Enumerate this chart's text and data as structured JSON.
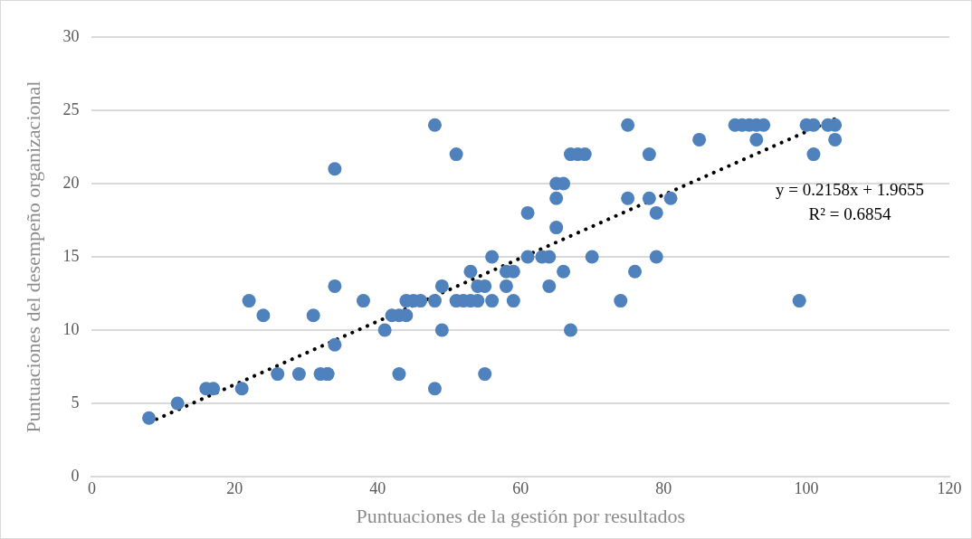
{
  "chart_data": {
    "type": "scatter",
    "xlabel": "Puntuaciones de la gestión por resultados",
    "ylabel": "Puntuaciones del desempeño organizacional",
    "xlim": [
      0,
      120
    ],
    "xticks": [
      0,
      20,
      40,
      60,
      80,
      100,
      120
    ],
    "ylim": [
      0,
      30
    ],
    "yticks": [
      0,
      5,
      10,
      15,
      20,
      25,
      30
    ],
    "grid": "y",
    "legend": false,
    "marker": "circle",
    "annotations": [
      "y = 0.2158x + 1.9655",
      "R² = 0.6854"
    ],
    "series": [
      {
        "color": "#4f81bd",
        "x": [
          8,
          12,
          16,
          17,
          21,
          22,
          24,
          26,
          29,
          31,
          32,
          33,
          33,
          34,
          34,
          34,
          38,
          41,
          42,
          43,
          43,
          44,
          44,
          45,
          46,
          48,
          48,
          48,
          49,
          49,
          51,
          51,
          52,
          53,
          53,
          54,
          54,
          55,
          55,
          56,
          56,
          58,
          58,
          59,
          59,
          61,
          61,
          63,
          64,
          64,
          65,
          65,
          65,
          66,
          66,
          67,
          67,
          68,
          69,
          70,
          74,
          75,
          75,
          76,
          78,
          78,
          79,
          79,
          81,
          85,
          90,
          91,
          92,
          93,
          94,
          93,
          99,
          100,
          101,
          101,
          103,
          104,
          104
        ],
        "values": [
          4,
          5,
          6,
          6,
          6,
          12,
          11,
          7,
          7,
          11,
          7,
          7,
          7,
          21,
          13,
          9,
          12,
          10,
          11,
          11,
          7,
          12,
          11,
          12,
          12,
          24,
          12,
          6,
          13,
          10,
          22,
          12,
          12,
          14,
          12,
          12,
          13,
          13,
          7,
          15,
          12,
          14,
          13,
          14,
          12,
          18,
          15,
          15,
          15,
          13,
          20,
          19,
          17,
          20,
          14,
          22,
          10,
          22,
          22,
          15,
          12,
          24,
          19,
          14,
          22,
          19,
          18,
          15,
          19,
          23,
          24,
          24,
          24,
          24,
          24,
          23,
          12,
          24,
          24,
          22,
          24,
          24,
          23
        ]
      },
      {
        "type": "line",
        "color": "#000000",
        "line_style": "dotted",
        "marker": "none",
        "x": [
          8,
          104
        ],
        "values": [
          3.69,
          24.41
        ]
      }
    ]
  }
}
